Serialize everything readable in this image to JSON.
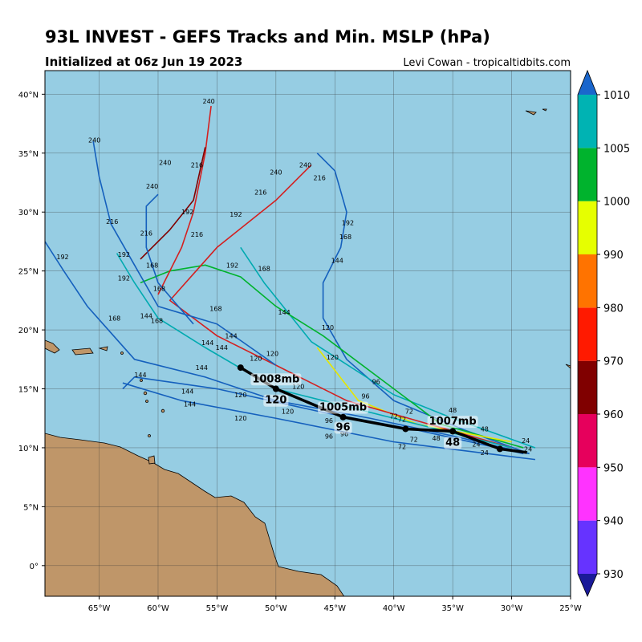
{
  "chart_data": {
    "type": "track-map",
    "title": "93L INVEST - GEFS Tracks and Min. MSLP (hPa)",
    "subtitle": "Initialized at 06z Jun 19 2023",
    "credit": "Levi Cowan - tropicaltidbits.com",
    "xlim": [
      -69.6,
      -25
    ],
    "ylim": [
      -2.6,
      42.0
    ],
    "xticks": [
      {
        "value": -65,
        "label": "65°W"
      },
      {
        "value": -60,
        "label": "60°W"
      },
      {
        "value": -55,
        "label": "55°W"
      },
      {
        "value": -50,
        "label": "50°W"
      },
      {
        "value": -45,
        "label": "45°W"
      },
      {
        "value": -40,
        "label": "40°W"
      },
      {
        "value": -35,
        "label": "35°W"
      },
      {
        "value": -30,
        "label": "30°W"
      },
      {
        "value": -25,
        "label": "25°W"
      }
    ],
    "yticks": [
      {
        "value": 0,
        "label": "0°"
      },
      {
        "value": 5,
        "label": "5°N"
      },
      {
        "value": 10,
        "label": "10°N"
      },
      {
        "value": 15,
        "label": "15°N"
      },
      {
        "value": 20,
        "label": "20°N"
      },
      {
        "value": 25,
        "label": "25°N"
      },
      {
        "value": 30,
        "label": "30°N"
      },
      {
        "value": 35,
        "label": "35°N"
      },
      {
        "value": 40,
        "label": "40°N"
      }
    ],
    "grid": true,
    "ocean_color": "#96cde3",
    "colorbar": {
      "ticks": [
        930,
        940,
        950,
        960,
        970,
        980,
        990,
        1000,
        1005,
        1010
      ],
      "colors": [
        "#6633ff",
        "#ff33ff",
        "#e6005c",
        "#800000",
        "#ff1a00",
        "#ff7300",
        "#e6ff00",
        "#00b32d",
        "#00b3b3"
      ],
      "under_color": "#1a1a99",
      "over_color": "#1a66cc"
    },
    "tracks": [
      {
        "color": "#1560bd",
        "lon": [
          -28.5,
          -35,
          -42,
          -50,
          -56,
          -62,
          -66,
          -68,
          -69.6
        ],
        "lat": [
          9.5,
          11,
          12.5,
          14,
          16,
          17.5,
          22,
          25,
          27.5
        ]
      },
      {
        "color": "#1560bd",
        "lon": [
          -28.5,
          -34,
          -40,
          -44,
          -46,
          -46,
          -44.5,
          -44,
          -45,
          -46.5
        ],
        "lat": [
          9.5,
          11.5,
          14,
          17.5,
          21,
          24,
          27,
          30,
          33.5,
          35
        ]
      },
      {
        "color": "#00aab0",
        "lon": [
          -28,
          -35,
          -40,
          -47,
          -51,
          -53
        ],
        "lat": [
          10,
          12.5,
          14.5,
          19,
          24,
          27
        ]
      },
      {
        "color": "#00b32d",
        "lon": [
          -29,
          -36,
          -40,
          -46,
          -50,
          -53,
          -56,
          -59,
          -61.5
        ],
        "lat": [
          10,
          12,
          15,
          19.5,
          22,
          24.5,
          25.5,
          25,
          24
        ]
      },
      {
        "color": "#e6e600",
        "lon": [
          -30,
          -38,
          -43,
          -46.5
        ],
        "lat": [
          10.5,
          12,
          14,
          18.5
        ]
      },
      {
        "color": "#d42020",
        "lon": [
          -30,
          -37,
          -44,
          -50,
          -55,
          -59,
          -55,
          -50,
          -47
        ],
        "lat": [
          10,
          12,
          14,
          17,
          19.5,
          22.5,
          27,
          31,
          34
        ]
      },
      {
        "color": "#d42020",
        "lon": [
          -60,
          -58,
          -57,
          -56,
          -55.5
        ],
        "lat": [
          23,
          27,
          30,
          35,
          39
        ]
      },
      {
        "color": "#800000",
        "lon": [
          -61.5,
          -59,
          -57,
          -56
        ],
        "lat": [
          26,
          28.5,
          31,
          35.5
        ]
      },
      {
        "color": "#1560bd",
        "lon": [
          -29,
          -38,
          -46,
          -55,
          -62,
          -63
        ],
        "lat": [
          9.5,
          11.5,
          13,
          15,
          16,
          15
        ]
      },
      {
        "color": "#1560bd",
        "lon": [
          -28,
          -40,
          -50,
          -58,
          -63
        ],
        "lat": [
          9,
          10.5,
          12.5,
          14,
          15.5
        ]
      },
      {
        "color": "#00aab0",
        "lon": [
          -30,
          -40,
          -50,
          -56,
          -60,
          -62,
          -63.5
        ],
        "lat": [
          10,
          12.5,
          15,
          18.5,
          21,
          24,
          26.5
        ]
      },
      {
        "color": "#1560bd",
        "lon": [
          -57,
          -60,
          -61,
          -61,
          -60
        ],
        "lat": [
          20.5,
          24,
          27,
          30.5,
          31.5
        ]
      },
      {
        "color": "#1560bd",
        "lon": [
          -65.5,
          -65,
          -64,
          -62,
          -60,
          -55,
          -50
        ],
        "lat": [
          36,
          33,
          29,
          25.5,
          22,
          20.5,
          17
        ]
      }
    ],
    "track_labels": [
      {
        "hour": 240,
        "lon": -55.7,
        "lat": 39.4
      },
      {
        "hour": 240,
        "lon": -65.4,
        "lat": 36.1
      },
      {
        "hour": 240,
        "lon": -59.4,
        "lat": 34.2
      },
      {
        "hour": 216,
        "lon": -56.7,
        "lat": 34.0
      },
      {
        "hour": 240,
        "lon": -50.0,
        "lat": 33.4
      },
      {
        "hour": 240,
        "lon": -47.5,
        "lat": 34.0
      },
      {
        "hour": 216,
        "lon": -46.3,
        "lat": 32.9
      },
      {
        "hour": 216,
        "lon": -51.3,
        "lat": 31.7
      },
      {
        "hour": 240,
        "lon": -60.5,
        "lat": 32.2
      },
      {
        "hour": 192,
        "lon": -57.5,
        "lat": 30.0
      },
      {
        "hour": 192,
        "lon": -53.4,
        "lat": 29.8
      },
      {
        "hour": 192,
        "lon": -43.9,
        "lat": 29.1
      },
      {
        "hour": 168,
        "lon": -44.1,
        "lat": 27.9
      },
      {
        "hour": 216,
        "lon": -63.9,
        "lat": 29.2
      },
      {
        "hour": 216,
        "lon": -61.0,
        "lat": 28.2
      },
      {
        "hour": 216,
        "lon": -56.7,
        "lat": 28.1
      },
      {
        "hour": 192,
        "lon": -68.1,
        "lat": 26.2
      },
      {
        "hour": 192,
        "lon": -62.9,
        "lat": 26.4
      },
      {
        "hour": 144,
        "lon": -44.8,
        "lat": 25.9
      },
      {
        "hour": 168,
        "lon": -51.0,
        "lat": 25.2
      },
      {
        "hour": 192,
        "lon": -53.7,
        "lat": 25.5
      },
      {
        "hour": 168,
        "lon": -60.5,
        "lat": 25.5
      },
      {
        "hour": 192,
        "lon": -62.9,
        "lat": 24.4
      },
      {
        "hour": 168,
        "lon": -59.9,
        "lat": 23.5
      },
      {
        "hour": 168,
        "lon": -55.1,
        "lat": 21.8
      },
      {
        "hour": 144,
        "lon": -49.3,
        "lat": 21.5
      },
      {
        "hour": 168,
        "lon": -63.7,
        "lat": 21.0
      },
      {
        "hour": 144,
        "lon": -61.0,
        "lat": 21.2
      },
      {
        "hour": 168,
        "lon": -60.1,
        "lat": 20.8
      },
      {
        "hour": 120,
        "lon": -45.6,
        "lat": 20.2
      },
      {
        "hour": 144,
        "lon": -53.8,
        "lat": 19.5
      },
      {
        "hour": 144,
        "lon": -55.8,
        "lat": 18.9
      },
      {
        "hour": 144,
        "lon": -54.6,
        "lat": 18.5
      },
      {
        "hour": 120,
        "lon": -45.2,
        "lat": 17.7
      },
      {
        "hour": 120,
        "lon": -51.7,
        "lat": 17.6
      },
      {
        "hour": 120,
        "lon": -50.3,
        "lat": 18.0
      },
      {
        "hour": 144,
        "lon": -56.3,
        "lat": 16.8
      },
      {
        "hour": 144,
        "lon": -61.5,
        "lat": 16.2
      },
      {
        "hour": 96,
        "lon": -41.5,
        "lat": 15.6
      },
      {
        "hour": 96,
        "lon": -42.4,
        "lat": 14.4
      },
      {
        "hour": 120,
        "lon": -48.1,
        "lat": 15.2
      },
      {
        "hour": 144,
        "lon": -57.5,
        "lat": 14.8
      },
      {
        "hour": 120,
        "lon": -53.0,
        "lat": 14.5
      },
      {
        "hour": 144,
        "lon": -57.3,
        "lat": 13.7
      },
      {
        "hour": 120,
        "lon": -49.0,
        "lat": 13.1
      },
      {
        "hour": 120,
        "lon": -53.0,
        "lat": 12.5
      },
      {
        "hour": 96,
        "lon": -45.5,
        "lat": 12.3
      },
      {
        "hour": 72,
        "lon": -38.7,
        "lat": 13.1
      },
      {
        "hour": 72,
        "lon": -39.3,
        "lat": 12.4
      },
      {
        "hour": 48,
        "lon": -35.0,
        "lat": 13.2
      },
      {
        "hour": 48,
        "lon": -32.3,
        "lat": 11.6
      },
      {
        "hour": 72,
        "lon": -40.0,
        "lat": 12.7
      },
      {
        "hour": 72,
        "lon": -38.3,
        "lat": 10.7
      },
      {
        "hour": 72,
        "lon": -39.3,
        "lat": 10.1
      },
      {
        "hour": 96,
        "lon": -44.2,
        "lat": 11.2
      },
      {
        "hour": 96,
        "lon": -45.5,
        "lat": 11.0
      },
      {
        "hour": 24,
        "lon": -28.8,
        "lat": 10.6
      },
      {
        "hour": 24,
        "lon": -28.6,
        "lat": 9.9
      },
      {
        "hour": 24,
        "lon": -32.3,
        "lat": 9.6
      },
      {
        "hour": 24,
        "lon": -33.0,
        "lat": 10.3
      },
      {
        "hour": 48,
        "lon": -36.4,
        "lat": 10.8
      }
    ],
    "mean_track": {
      "color": "#000000",
      "lon": [
        -28.7,
        -31,
        -35,
        -39,
        -44.3,
        -50,
        -53
      ],
      "lat": [
        9.6,
        9.9,
        11.4,
        11.6,
        12.6,
        15,
        16.8
      ]
    },
    "annotations": [
      {
        "text": "1007mb",
        "lon": -35,
        "lat": 12.3
      },
      {
        "text": "48",
        "lon": -35,
        "lat": 10.5
      },
      {
        "text": "1005mb",
        "lon": -44.3,
        "lat": 13.5
      },
      {
        "text": "96",
        "lon": -44.3,
        "lat": 11.8
      },
      {
        "text": "1008mb",
        "lon": -50,
        "lat": 15.9
      },
      {
        "text": "120",
        "lon": -50,
        "lat": 14.1
      }
    ]
  }
}
